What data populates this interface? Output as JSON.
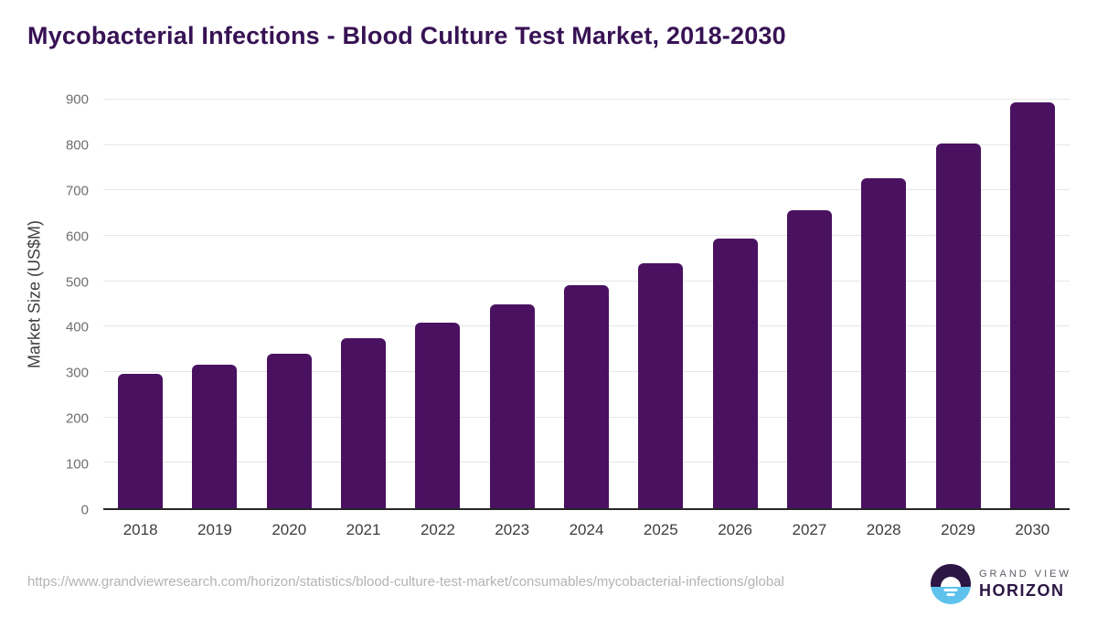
{
  "title": "Mycobacterial Infections - Blood Culture Test Market, 2018-2030",
  "chart_data": {
    "type": "bar",
    "title": "Mycobacterial Infections - Blood Culture Test Market, 2018-2030",
    "categories": [
      "2018",
      "2019",
      "2020",
      "2021",
      "2022",
      "2023",
      "2024",
      "2025",
      "2026",
      "2027",
      "2028",
      "2029",
      "2030"
    ],
    "values": [
      296,
      316,
      341,
      375,
      409,
      450,
      491,
      540,
      594,
      656,
      727,
      804,
      894
    ],
    "xlabel": "",
    "ylabel": "Market Size (US$M)",
    "ylim": [
      0,
      900
    ],
    "ytick_step": 100,
    "grid": true,
    "legend": false
  },
  "footer": {
    "source_url": "https://www.grandviewresearch.com/horizon/statistics/blood-culture-test-market/consumables/mycobacterial-infections/global",
    "logo": {
      "line1": "GRAND VIEW",
      "line2": "HORIZON"
    }
  },
  "colors": {
    "title": "#371254",
    "bar": "#4a1161",
    "axis_line": "#262626",
    "gridline": "#e6e6e6",
    "tick_label": "#6f6f6f",
    "category_label": "#3d3d3d",
    "url_text": "#b3b3b3",
    "logo_purple": "#2b1644",
    "logo_blue": "#5ec2ec"
  }
}
